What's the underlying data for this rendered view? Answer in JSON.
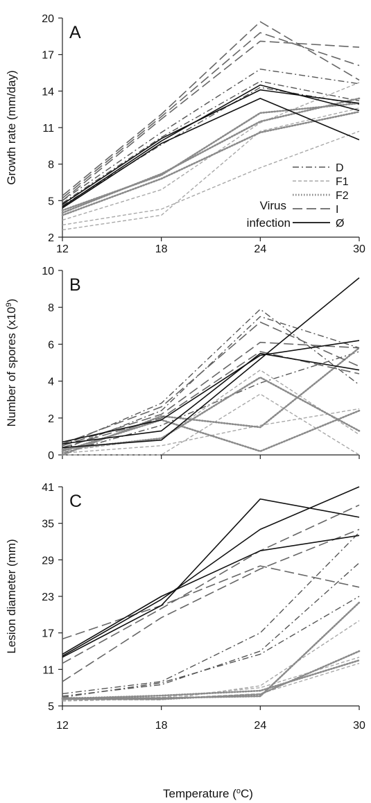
{
  "figure": {
    "xlabel_main": "Temperature (",
    "xlabel_sup": "o",
    "xlabel_tail": "C)"
  },
  "legend": {
    "title_line1": "Virus",
    "title_line2": "infection"
  },
  "styles": {
    "D": {
      "color": "#555555",
      "dash": "dashdot"
    },
    "F1": {
      "color": "#a8a8a8",
      "dash": "short-dash"
    },
    "F2": {
      "color": "#8a8a8a",
      "dash": "dotted"
    },
    "I": {
      "color": "#666666",
      "dash": "long-dash"
    },
    "Ø": {
      "color": "#111111",
      "dash": "solid"
    }
  },
  "chart_data": [
    {
      "type": "line",
      "panel_label": "A",
      "ylabel": "Growth rate (mm/day)",
      "ylabel_sup": "",
      "ylabel_tail": "",
      "x": [
        12,
        18,
        24,
        30
      ],
      "xticks": [
        "12",
        "18",
        "24",
        "30"
      ],
      "ylim": [
        2,
        20
      ],
      "yticks": [
        "2",
        "5",
        "8",
        "11",
        "14",
        "17",
        "20"
      ],
      "show_legend": true,
      "series": [
        {
          "name": "D",
          "values": [
            4.6,
            9.6,
            14.3,
            12.9
          ]
        },
        {
          "name": "D",
          "values": [
            4.8,
            10.2,
            14.8,
            13.2
          ]
        },
        {
          "name": "D",
          "values": [
            5.0,
            10.6,
            15.8,
            14.6
          ]
        },
        {
          "name": "F1",
          "values": [
            2.6,
            3.8,
            10.7,
            12.6
          ]
        },
        {
          "name": "F1",
          "values": [
            3.0,
            4.3,
            7.7,
            10.7
          ]
        },
        {
          "name": "F1",
          "values": [
            3.4,
            5.9,
            11.4,
            14.7
          ]
        },
        {
          "name": "F2",
          "values": [
            3.8,
            6.8,
            10.6,
            12.3
          ]
        },
        {
          "name": "F2",
          "values": [
            4.0,
            7.2,
            11.5,
            13.4
          ]
        },
        {
          "name": "F2",
          "values": [
            4.2,
            7.1,
            12.2,
            13.0
          ]
        },
        {
          "name": "I",
          "values": [
            5.0,
            11.7,
            18.1,
            17.6
          ]
        },
        {
          "name": "I",
          "values": [
            5.2,
            11.9,
            18.8,
            16.1
          ]
        },
        {
          "name": "I",
          "values": [
            5.4,
            12.1,
            19.7,
            14.9
          ]
        },
        {
          "name": "Ø",
          "values": [
            4.4,
            9.7,
            13.4,
            10.0
          ]
        },
        {
          "name": "Ø",
          "values": [
            4.5,
            9.9,
            14.5,
            12.4
          ]
        },
        {
          "name": "Ø",
          "values": [
            4.7,
            10.1,
            14.1,
            13.0
          ]
        }
      ]
    },
    {
      "type": "line",
      "panel_label": "B",
      "ylabel": "Number of spores (x10",
      "ylabel_sup": "9",
      "ylabel_tail": ")",
      "x": [
        12,
        18,
        24,
        30
      ],
      "xticks": [],
      "ylim": [
        0,
        10
      ],
      "yticks": [
        "0",
        "2",
        "4",
        "6",
        "8",
        "10"
      ],
      "show_legend": false,
      "series": [
        {
          "name": "D",
          "values": [
            0.5,
            2.8,
            7.9,
            3.8
          ]
        },
        {
          "name": "D",
          "values": [
            0.3,
            2.4,
            7.5,
            5.8
          ]
        },
        {
          "name": "D",
          "values": [
            0.1,
            1.6,
            3.9,
            5.6
          ]
        },
        {
          "name": "F1",
          "values": [
            0.0,
            0.0,
            3.3,
            0.0
          ]
        },
        {
          "name": "F1",
          "values": [
            0.2,
            0.9,
            4.6,
            1.1
          ]
        },
        {
          "name": "F1",
          "values": [
            0.1,
            0.5,
            1.6,
            2.5
          ]
        },
        {
          "name": "F2",
          "values": [
            0.2,
            1.9,
            0.2,
            2.4
          ]
        },
        {
          "name": "F2",
          "values": [
            0.3,
            0.9,
            4.2,
            1.3
          ]
        },
        {
          "name": "F2",
          "values": [
            0.0,
            2.1,
            1.5,
            5.8
          ]
        },
        {
          "name": "I",
          "values": [
            0.6,
            2.6,
            7.2,
            4.8
          ]
        },
        {
          "name": "I",
          "values": [
            0.5,
            2.2,
            6.1,
            5.8
          ]
        },
        {
          "name": "I",
          "values": [
            0.4,
            2.0,
            5.6,
            4.4
          ]
        },
        {
          "name": "Ø",
          "values": [
            0.4,
            0.8,
            5.2,
            9.6
          ]
        },
        {
          "name": "Ø",
          "values": [
            0.6,
            1.3,
            5.5,
            4.6
          ]
        },
        {
          "name": "Ø",
          "values": [
            0.7,
            1.9,
            5.4,
            6.2
          ]
        }
      ]
    },
    {
      "type": "line",
      "panel_label": "C",
      "ylabel": "Lesion diameter (mm)",
      "ylabel_sup": "",
      "ylabel_tail": "",
      "x": [
        12,
        18,
        24,
        30
      ],
      "xticks": [
        "12",
        "18",
        "24",
        "30"
      ],
      "ylim": [
        5,
        41
      ],
      "yticks": [
        "5",
        "11",
        "17",
        "23",
        "29",
        "35",
        "41"
      ],
      "show_legend": false,
      "series": [
        {
          "name": "D",
          "values": [
            7.0,
            9.0,
            17.0,
            33.5
          ]
        },
        {
          "name": "D",
          "values": [
            6.6,
            8.5,
            14.0,
            28.5
          ]
        },
        {
          "name": "D",
          "values": [
            6.4,
            8.8,
            13.5,
            23.0
          ]
        },
        {
          "name": "F1",
          "values": [
            6.0,
            6.0,
            8.3,
            19.0
          ]
        },
        {
          "name": "F1",
          "values": [
            5.8,
            6.2,
            7.0,
            12.0
          ]
        },
        {
          "name": "F1",
          "values": [
            6.2,
            6.4,
            8.0,
            13.0
          ]
        },
        {
          "name": "F2",
          "values": [
            6.3,
            6.3,
            6.6,
            22.0
          ]
        },
        {
          "name": "F2",
          "values": [
            6.1,
            6.1,
            6.9,
            14.0
          ]
        },
        {
          "name": "F2",
          "values": [
            6.2,
            6.7,
            7.5,
            12.5
          ]
        },
        {
          "name": "I",
          "values": [
            16.0,
            21.5,
            28.0,
            24.5
          ]
        },
        {
          "name": "I",
          "values": [
            12.0,
            21.0,
            30.5,
            38.0
          ]
        },
        {
          "name": "I",
          "values": [
            9.0,
            19.5,
            27.5,
            34.0
          ]
        },
        {
          "name": "Ø",
          "values": [
            13.0,
            21.5,
            39.0,
            36.0
          ]
        },
        {
          "name": "Ø",
          "values": [
            13.5,
            23.0,
            30.5,
            33.0
          ]
        },
        {
          "name": "Ø",
          "values": [
            13.2,
            22.5,
            34.0,
            41.0
          ]
        }
      ]
    }
  ]
}
